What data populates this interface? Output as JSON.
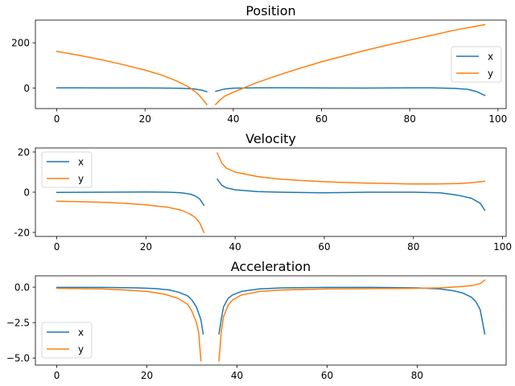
{
  "chart_data": [
    {
      "type": "line",
      "title": "Position",
      "xlabel": "",
      "ylabel": "",
      "xlim": [
        -4.85,
        101.85
      ],
      "ylim": [
        -90,
        300
      ],
      "xticks": [
        0,
        20,
        40,
        60,
        80,
        100
      ],
      "yticks": [
        0,
        200
      ],
      "grid": false,
      "legend": "center-right",
      "series": [
        {
          "name": "x",
          "color": "#1f77b4",
          "segments": [
            [
              [
                0,
                1.5
              ],
              [
                5,
                1.2
              ],
              [
                10,
                0.8
              ],
              [
                15,
                0.6
              ],
              [
                20,
                0.6
              ],
              [
                24,
                0.4
              ],
              [
                28,
                -0.5
              ],
              [
                31,
                -3
              ],
              [
                33,
                -9
              ],
              [
                34,
                -16
              ]
            ],
            [
              [
                36,
                -14
              ],
              [
                38,
                -4
              ],
              [
                40,
                0
              ],
              [
                45,
                1.5
              ],
              [
                50,
                1.8
              ],
              [
                60,
                0.8
              ],
              [
                70,
                0.5
              ],
              [
                80,
                1.5
              ],
              [
                85,
                1.2
              ],
              [
                90,
                -1
              ],
              [
                93,
                -5
              ],
              [
                95,
                -14
              ],
              [
                97,
                -32
              ]
            ]
          ]
        },
        {
          "name": "y",
          "color": "#ff7f0e",
          "segments": [
            [
              [
                0,
                162
              ],
              [
                5,
                145
              ],
              [
                10,
                126
              ],
              [
                15,
                104
              ],
              [
                20,
                80
              ],
              [
                24,
                56
              ],
              [
                27,
                33
              ],
              [
                30,
                4
              ],
              [
                32,
                -25
              ],
              [
                33,
                -48
              ],
              [
                34,
                -72
              ]
            ],
            [
              [
                36,
                -72
              ],
              [
                37,
                -52
              ],
              [
                38,
                -36
              ],
              [
                40,
                -18
              ],
              [
                45,
                22
              ],
              [
                50,
                56
              ],
              [
                55,
                87
              ],
              [
                60,
                116
              ],
              [
                65,
                142
              ],
              [
                70,
                167
              ],
              [
                75,
                190
              ],
              [
                80,
                212
              ],
              [
                85,
                233
              ],
              [
                90,
                255
              ],
              [
                95,
                273
              ],
              [
                97,
                280
              ]
            ]
          ]
        }
      ]
    },
    {
      "type": "line",
      "title": "Velocity",
      "xlabel": "",
      "ylabel": "",
      "xlim": [
        -4.8,
        100.8
      ],
      "ylim": [
        -22,
        22
      ],
      "xticks": [
        0,
        20,
        40,
        60,
        80,
        100
      ],
      "yticks": [
        -20,
        0,
        20
      ],
      "grid": false,
      "legend": "upper-left",
      "series": [
        {
          "name": "x",
          "color": "#1f77b4",
          "segments": [
            [
              [
                0,
                -0.1
              ],
              [
                10,
                0
              ],
              [
                20,
                0.1
              ],
              [
                25,
                0
              ],
              [
                28,
                -0.3
              ],
              [
                30,
                -1
              ],
              [
                31,
                -1.8
              ],
              [
                32,
                -3.2
              ],
              [
                33,
                -6.5
              ]
            ],
            [
              [
                36,
                6.5
              ],
              [
                37,
                3.5
              ],
              [
                38,
                2.2
              ],
              [
                40,
                1.2
              ],
              [
                45,
                0.3
              ],
              [
                50,
                0
              ],
              [
                60,
                -0.3
              ],
              [
                70,
                0
              ],
              [
                80,
                0
              ],
              [
                86,
                -0.3
              ],
              [
                90,
                -1.5
              ],
              [
                93,
                -3
              ],
              [
                95,
                -5.5
              ],
              [
                96,
                -9
              ]
            ]
          ]
        },
        {
          "name": "y",
          "color": "#ff7f0e",
          "segments": [
            [
              [
                0,
                -4.5
              ],
              [
                5,
                -4.7
              ],
              [
                10,
                -5
              ],
              [
                15,
                -5.5
              ],
              [
                20,
                -6.3
              ],
              [
                25,
                -7.5
              ],
              [
                28,
                -9
              ],
              [
                30,
                -11
              ],
              [
                31,
                -12.5
              ],
              [
                32,
                -15
              ],
              [
                33,
                -20
              ]
            ],
            [
              [
                36,
                19.5
              ],
              [
                37,
                14.5
              ],
              [
                38,
                12
              ],
              [
                40,
                10
              ],
              [
                45,
                7.8
              ],
              [
                50,
                6.5
              ],
              [
                55,
                5.8
              ],
              [
                60,
                5.2
              ],
              [
                65,
                4.8
              ],
              [
                70,
                4.5
              ],
              [
                75,
                4.3
              ],
              [
                80,
                4.1
              ],
              [
                85,
                4.1
              ],
              [
                90,
                4.3
              ],
              [
                93,
                4.7
              ],
              [
                95,
                5.2
              ],
              [
                96,
                5.5
              ]
            ]
          ]
        }
      ]
    },
    {
      "type": "line",
      "title": "Acceleration",
      "xlabel": "",
      "ylabel": "",
      "xlim": [
        -4.75,
        99.75
      ],
      "ylim": [
        -5.5,
        0.8
      ],
      "xticks": [
        0,
        20,
        40,
        60,
        80
      ],
      "yticks": [
        -5.0,
        -2.5,
        0.0
      ],
      "ytick_labels": [
        "−5.0",
        "−2.5",
        "0.0"
      ],
      "grid": false,
      "legend": "lower-left",
      "series": [
        {
          "name": "x",
          "color": "#1f77b4",
          "segments": [
            [
              [
                0,
                -0.02
              ],
              [
                10,
                -0.02
              ],
              [
                18,
                -0.05
              ],
              [
                22,
                -0.1
              ],
              [
                25,
                -0.2
              ],
              [
                27,
                -0.35
              ],
              [
                29,
                -0.6
              ],
              [
                30,
                -0.9
              ],
              [
                31,
                -1.4
              ],
              [
                32,
                -2.3
              ],
              [
                32.5,
                -3.3
              ]
            ],
            [
              [
                36,
                -3.3
              ],
              [
                36.5,
                -2.3
              ],
              [
                37,
                -1.4
              ],
              [
                38,
                -0.8
              ],
              [
                39,
                -0.55
              ],
              [
                41,
                -0.3
              ],
              [
                45,
                -0.12
              ],
              [
                50,
                -0.05
              ],
              [
                60,
                -0.02
              ],
              [
                70,
                -0.02
              ],
              [
                80,
                -0.05
              ],
              [
                85,
                -0.12
              ],
              [
                88,
                -0.25
              ],
              [
                90,
                -0.4
              ],
              [
                92,
                -0.7
              ],
              [
                93,
                -1.0
              ],
              [
                94,
                -1.6
              ],
              [
                95,
                -3.3
              ]
            ]
          ]
        },
        {
          "name": "y",
          "color": "#ff7f0e",
          "segments": [
            [
              [
                0,
                -0.08
              ],
              [
                10,
                -0.12
              ],
              [
                15,
                -0.2
              ],
              [
                20,
                -0.3
              ],
              [
                24,
                -0.5
              ],
              [
                27,
                -0.8
              ],
              [
                29,
                -1.2
              ],
              [
                30,
                -1.7
              ],
              [
                31,
                -2.5
              ],
              [
                31.5,
                -3.2
              ],
              [
                32,
                -5.2
              ]
            ],
            [
              [
                36,
                -5.2
              ],
              [
                36.5,
                -3.2
              ],
              [
                37,
                -2.1
              ],
              [
                38,
                -1.3
              ],
              [
                39,
                -0.9
              ],
              [
                41,
                -0.55
              ],
              [
                45,
                -0.3
              ],
              [
                50,
                -0.2
              ],
              [
                60,
                -0.12
              ],
              [
                70,
                -0.1
              ],
              [
                80,
                -0.08
              ],
              [
                85,
                -0.05
              ],
              [
                90,
                0.05
              ],
              [
                92,
                0.1
              ],
              [
                94,
                0.25
              ],
              [
                95,
                0.5
              ]
            ]
          ]
        }
      ]
    }
  ]
}
